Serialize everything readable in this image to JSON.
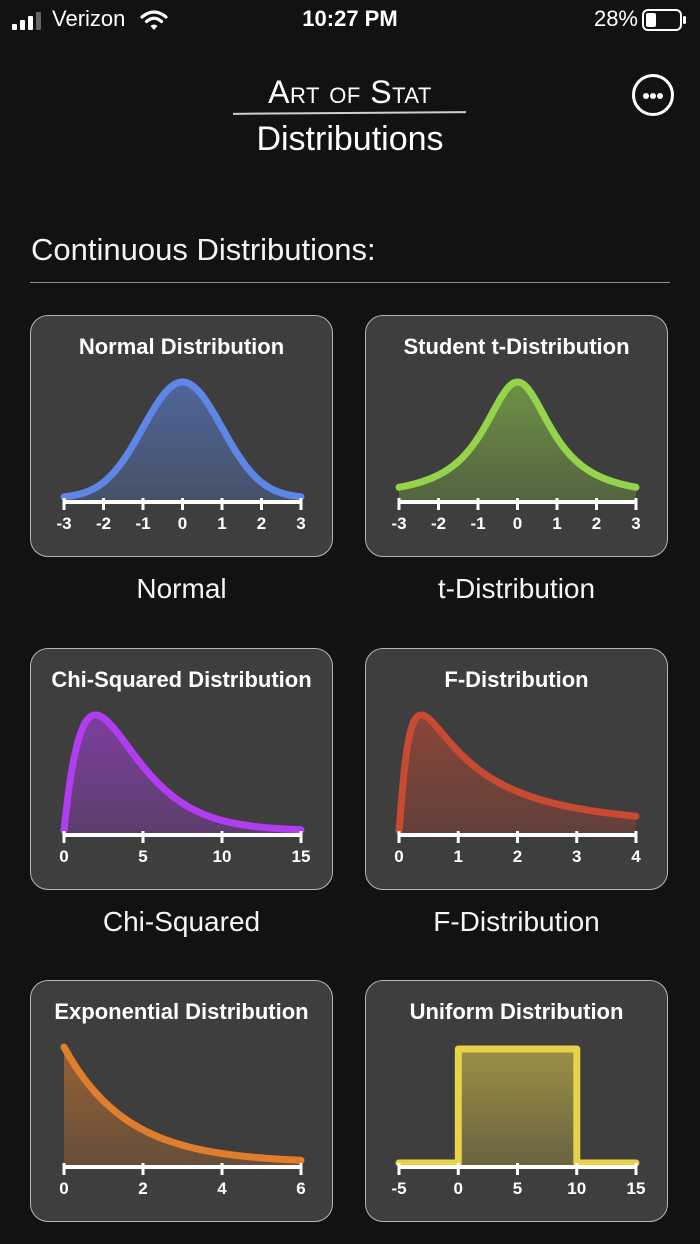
{
  "status_bar": {
    "carrier": "Verizon",
    "time": "10:27 PM",
    "battery_percent": "28%",
    "signal_icon": "signal-bars-icon",
    "wifi_icon": "wifi-icon",
    "battery_icon": "battery-icon"
  },
  "header": {
    "brand": "Art of Stat",
    "subtitle": "Distributions",
    "more_icon": "more-options-icon"
  },
  "section": {
    "title": "Continuous Distributions:"
  },
  "tiles": [
    {
      "title": "Normal Distribution",
      "caption": "Normal",
      "color": "#5e86e6",
      "ticks": [
        "-3",
        "-2",
        "-1",
        "0",
        "1",
        "2",
        "3"
      ]
    },
    {
      "title": "Student t-Distribution",
      "caption": "t-Distribution",
      "color": "#95d44a",
      "ticks": [
        "-3",
        "-2",
        "-1",
        "0",
        "1",
        "2",
        "3"
      ]
    },
    {
      "title": "Chi-Squared Distribution",
      "caption": "Chi-Squared",
      "color": "#b13df0",
      "ticks": [
        "0",
        "5",
        "10",
        "15"
      ]
    },
    {
      "title": "F-Distribution",
      "caption": "F-Distribution",
      "color": "#c94a32",
      "ticks": [
        "0",
        "1",
        "2",
        "3",
        "4"
      ]
    },
    {
      "title": "Exponential Distribution",
      "caption": "",
      "color": "#e07e2c",
      "ticks": [
        "0",
        "2",
        "4",
        "6"
      ]
    },
    {
      "title": "Uniform Distribution",
      "caption": "",
      "color": "#e8d24a",
      "ticks": [
        "-5",
        "0",
        "5",
        "10",
        "15"
      ]
    }
  ]
}
